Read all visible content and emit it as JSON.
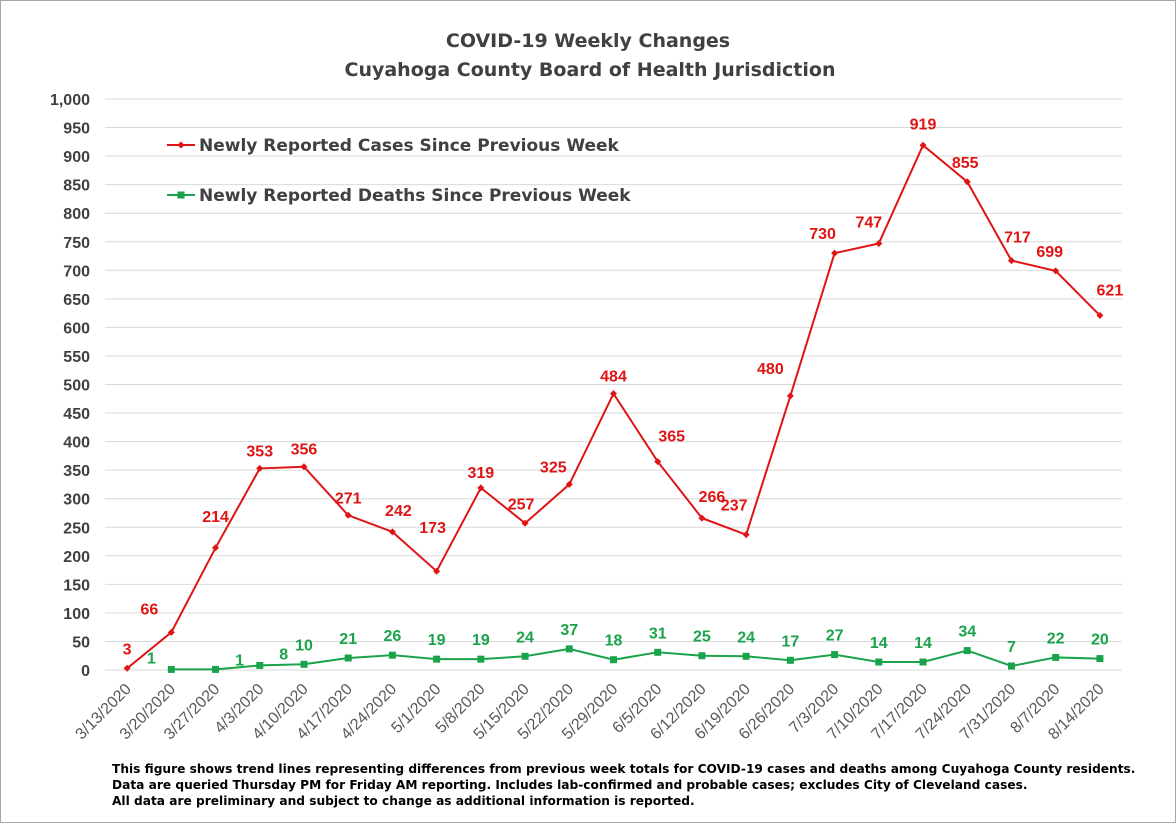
{
  "chart_data": {
    "type": "line",
    "title": [
      "COVID-19 Weekly Changes",
      "Cuyahoga County Board of Health Jurisdiction"
    ],
    "xlabel": "",
    "ylabel": "",
    "ylim": [
      0,
      1000
    ],
    "ytick_labels": [
      "0",
      "50",
      "100",
      "150",
      "200",
      "250",
      "300",
      "350",
      "400",
      "450",
      "500",
      "550",
      "600",
      "650",
      "700",
      "750",
      "800",
      "850",
      "900",
      "950",
      "1,000"
    ],
    "grid": true,
    "legend_position": "top-left",
    "categories": [
      "3/13/2020",
      "3/20/2020",
      "3/27/2020",
      "4/3/2020",
      "4/10/2020",
      "4/17/2020",
      "4/24/2020",
      "5/1/2020",
      "5/8/2020",
      "5/15/2020",
      "5/22/2020",
      "5/29/2020",
      "6/5/2020",
      "6/12/2020",
      "6/19/2020",
      "6/26/2020",
      "7/3/2020",
      "7/10/2020",
      "7/17/2020",
      "7/24/2020",
      "7/31/2020",
      "8/7/2020",
      "8/14/2020"
    ],
    "series": [
      {
        "name": "Newly Reported Cases Since Previous Week",
        "color": "#e01414",
        "marker": "diamond",
        "values": [
          3,
          66,
          214,
          353,
          356,
          271,
          242,
          173,
          319,
          257,
          325,
          484,
          365,
          266,
          237,
          480,
          730,
          747,
          919,
          855,
          717,
          699,
          621
        ]
      },
      {
        "name": "Newly Reported Deaths Since Previous Week",
        "color": "#1aa34a",
        "marker": "square",
        "values": [
          null,
          1,
          1,
          8,
          10,
          21,
          26,
          19,
          19,
          24,
          37,
          18,
          31,
          25,
          24,
          17,
          27,
          14,
          14,
          34,
          7,
          22,
          20
        ]
      }
    ]
  },
  "footnote": [
    "This figure shows trend lines representing differences from previous week totals for COVID-19 cases and deaths among Cuyahoga County residents.",
    "Data are queried Thursday PM for Friday AM reporting. Includes lab-confirmed and probable cases; excludes City of Cleveland cases.",
    "All data are preliminary and subject to change as additional information is reported."
  ],
  "colors": {
    "grid": "#d9d9d9",
    "axis_text": "#404040",
    "border": "#a6a6a6"
  }
}
